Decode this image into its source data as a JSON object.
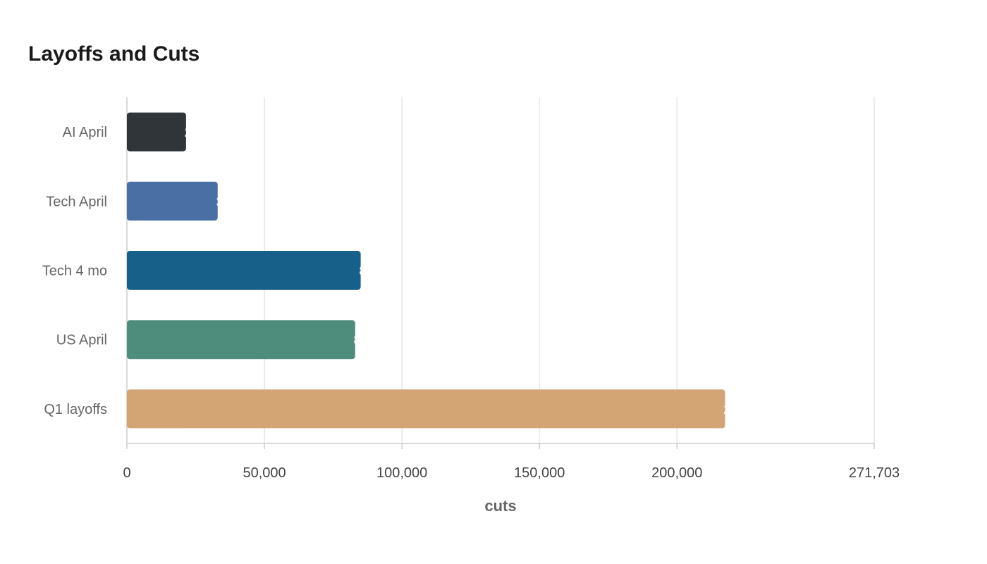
{
  "chart_data": {
    "type": "bar",
    "orientation": "horizontal",
    "title": "Layoffs and Cuts",
    "xlabel": "cuts",
    "ylabel": "",
    "categories": [
      "AI April",
      "Tech April",
      "Tech 4 mo",
      "US April",
      "Q1 layoffs"
    ],
    "values": [
      21500,
      33000,
      85000,
      83000,
      217500
    ],
    "colors": [
      "#2f3539",
      "#4a6fa5",
      "#17608a",
      "#4e8c7b",
      "#d4a574"
    ],
    "xlim": [
      0,
      271703
    ],
    "xticks": [
      0,
      50000,
      100000,
      150000,
      200000,
      271703
    ],
    "xtick_labels": [
      "0",
      "50,000",
      "100,000",
      "150,000",
      "200,000",
      "271,703"
    ],
    "grid": true,
    "legend": "none"
  }
}
